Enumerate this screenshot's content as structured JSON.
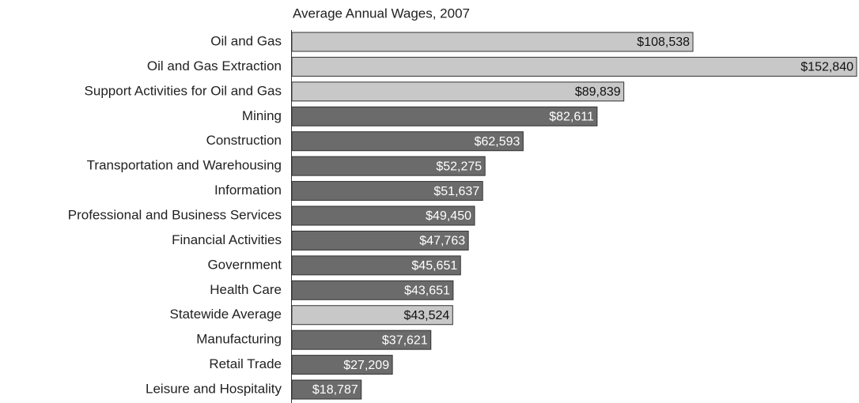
{
  "chart_data": {
    "type": "barh",
    "title": "Average Annual Wages, 2007",
    "categories": [
      "Oil and Gas",
      "Oil and Gas Extraction",
      "Support Activities for Oil and Gas",
      "Mining",
      "Construction",
      "Transportation and Warehousing",
      "Information",
      "Professional and Business Services",
      "Financial Activities",
      "Government",
      "Health Care",
      "Statewide Average",
      "Manufacturing",
      "Retail Trade",
      "Leisure and Hospitality"
    ],
    "values": [
      108538,
      152840,
      89839,
      82611,
      62593,
      52275,
      51637,
      49450,
      47763,
      45651,
      43651,
      43524,
      37621,
      27209,
      18787
    ],
    "value_labels": [
      "$108,538",
      "$152,840",
      "$89,839",
      "$82,611",
      "$62,593",
      "$52,275",
      "$51,637",
      "$49,450",
      "$47,763",
      "$45,651",
      "$43,651",
      "$43,524",
      "$37,621",
      "$27,209",
      "$18,787"
    ],
    "colors": [
      "#c8c8c8",
      "#c8c8c8",
      "#c8c8c8",
      "#6b6b6b",
      "#6b6b6b",
      "#6b6b6b",
      "#6b6b6b",
      "#6b6b6b",
      "#6b6b6b",
      "#6b6b6b",
      "#6b6b6b",
      "#c8c8c8",
      "#6b6b6b",
      "#6b6b6b",
      "#6b6b6b"
    ],
    "label_colors": [
      "#111111",
      "#111111",
      "#111111",
      "#ffffff",
      "#ffffff",
      "#ffffff",
      "#ffffff",
      "#ffffff",
      "#ffffff",
      "#ffffff",
      "#ffffff",
      "#111111",
      "#ffffff",
      "#ffffff",
      "#ffffff"
    ]
  }
}
